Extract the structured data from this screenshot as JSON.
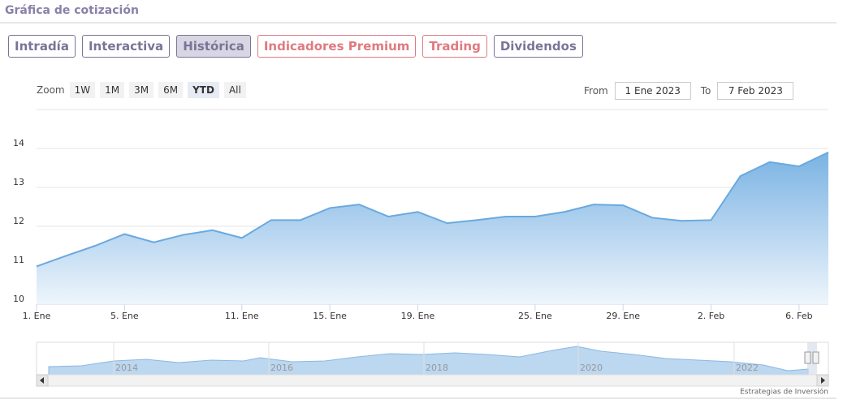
{
  "header": {
    "title": "Gráfica de cotización"
  },
  "tabs": [
    "Intradía",
    "Interactiva",
    "Histórica",
    "Indicadores Premium",
    "Trading",
    "Dividendos"
  ],
  "zoom": {
    "label": "Zoom",
    "buttons": [
      "1W",
      "1M",
      "3M",
      "6M",
      "YTD",
      "All"
    ]
  },
  "range": {
    "from_label": "From",
    "from": "1 Ene 2023",
    "to_label": "To",
    "to": "7 Feb 2023"
  },
  "chart_data": {
    "type": "area",
    "categories": [
      "1. Ene",
      null,
      null,
      "5. Ene",
      null,
      null,
      null,
      "11. Ene",
      null,
      null,
      "15. Ene",
      null,
      null,
      "19. Ene",
      null,
      null,
      null,
      "25. Ene",
      null,
      null,
      "29. Ene",
      null,
      null,
      "2. Feb",
      null,
      null,
      "6. Feb",
      null
    ],
    "series": [
      {
        "color": "#6aa9df",
        "values": [
          10.97,
          11.24,
          11.5,
          11.8,
          11.59,
          11.78,
          11.9,
          11.7,
          12.16,
          12.16,
          12.47,
          12.56,
          12.25,
          12.37,
          12.08,
          12.16,
          12.25,
          12.25,
          12.37,
          12.56,
          12.54,
          12.22,
          12.14,
          12.16,
          13.29,
          13.65,
          13.54,
          13.9
        ]
      }
    ],
    "ylim": [
      10,
      15
    ],
    "yticks": [
      10,
      11,
      12,
      13,
      14
    ],
    "grid": true
  },
  "navigator": {
    "labels": [
      "2014",
      "2016",
      "2018",
      "2020",
      "2022"
    ]
  },
  "credit": "Estrategias de Inversión"
}
